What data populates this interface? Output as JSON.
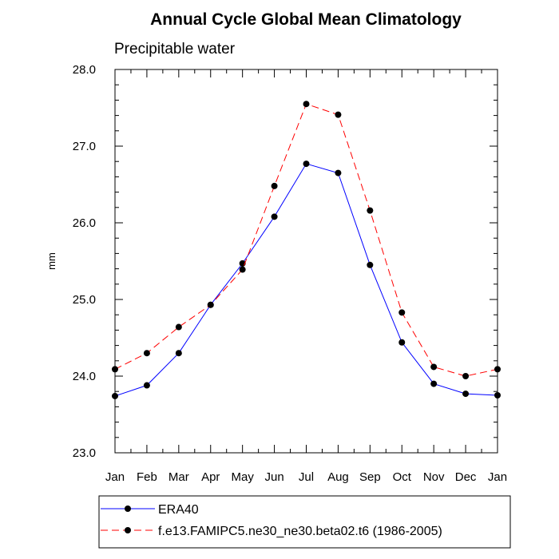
{
  "chart_data": {
    "type": "line",
    "title": "Annual Cycle Global Mean Climatology",
    "subtitle": "Precipitable water",
    "ylabel": "mm",
    "xlabel": "",
    "categories": [
      "Jan",
      "Feb",
      "Mar",
      "Apr",
      "May",
      "Jun",
      "Jul",
      "Aug",
      "Sep",
      "Oct",
      "Nov",
      "Dec",
      "Jan"
    ],
    "ylim": [
      23.0,
      28.0
    ],
    "yticks": [
      "23.0",
      "24.0",
      "25.0",
      "26.0",
      "27.0",
      "28.0"
    ],
    "grid": false,
    "legend_position": "bottom",
    "series": [
      {
        "name": "ERA40",
        "color": "#0000ff",
        "dash": "solid",
        "values": [
          23.74,
          23.88,
          24.3,
          24.93,
          25.47,
          26.08,
          26.77,
          26.65,
          25.45,
          24.44,
          23.9,
          23.77,
          23.75
        ]
      },
      {
        "name": "f.e13.FAMIPC5.ne30_ne30.beta02.t6 (1986-2005)",
        "color": "#ff0000",
        "dash": "dashed",
        "values": [
          24.09,
          24.3,
          24.64,
          24.93,
          25.39,
          26.48,
          27.55,
          27.41,
          26.16,
          24.83,
          24.12,
          24.0,
          24.09
        ]
      }
    ]
  }
}
